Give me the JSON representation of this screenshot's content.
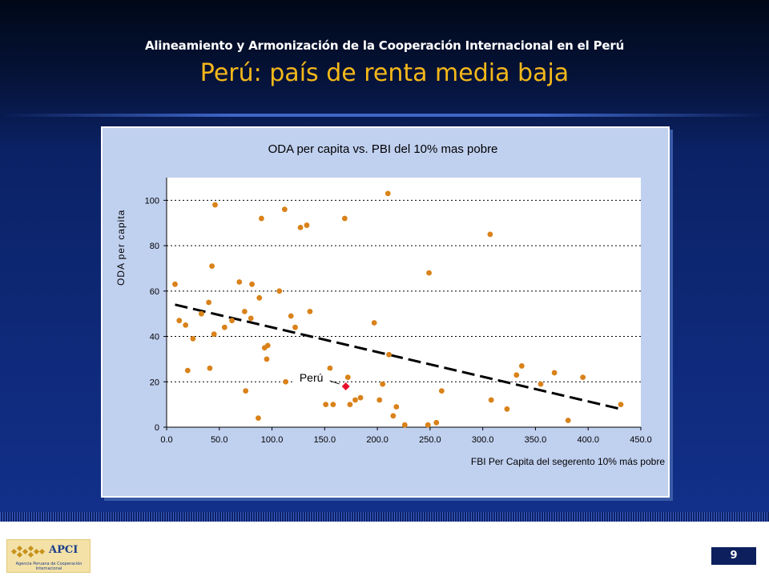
{
  "header": {
    "supertitle": "Alineamiento y Armonización de la Cooperación Internacional en el Perú",
    "title": "Perú: país de renta media baja"
  },
  "chart_data": {
    "type": "scatter",
    "title": "ODA per capita vs. PBI del 10% mas pobre",
    "xlabel": "FBI Per Capita del segerento 10% más pobre",
    "ylabel": "ODA per capita",
    "xlim": [
      0,
      450
    ],
    "ylim": [
      0,
      110
    ],
    "x_ticks": [
      "0.0",
      "50.0",
      "100.0",
      "150.0",
      "200.0",
      "250.0",
      "300.0",
      "350.0",
      "400.0",
      "450.0"
    ],
    "y_ticks": [
      "0",
      "20",
      "40",
      "60",
      "80",
      "100"
    ],
    "y_gridlines": [
      20,
      40,
      60,
      80,
      100
    ],
    "grid": "dotted horizontal",
    "colors": {
      "points": "#d9821a",
      "highlight": "#e8102a",
      "trend": "#000000",
      "plot_bg": "#ffffff",
      "frame_bg": "#c0d0ef"
    },
    "points": [
      {
        "x": 8,
        "y": 63
      },
      {
        "x": 12,
        "y": 47
      },
      {
        "x": 18,
        "y": 45
      },
      {
        "x": 20,
        "y": 25
      },
      {
        "x": 25,
        "y": 39
      },
      {
        "x": 33,
        "y": 50
      },
      {
        "x": 40,
        "y": 55
      },
      {
        "x": 41,
        "y": 26
      },
      {
        "x": 43,
        "y": 71
      },
      {
        "x": 45,
        "y": 41
      },
      {
        "x": 46,
        "y": 98
      },
      {
        "x": 55,
        "y": 44
      },
      {
        "x": 62,
        "y": 47
      },
      {
        "x": 69,
        "y": 64
      },
      {
        "x": 74,
        "y": 51
      },
      {
        "x": 75,
        "y": 16
      },
      {
        "x": 80,
        "y": 48
      },
      {
        "x": 81,
        "y": 63
      },
      {
        "x": 87,
        "y": 4
      },
      {
        "x": 88,
        "y": 57
      },
      {
        "x": 90,
        "y": 92
      },
      {
        "x": 93,
        "y": 35
      },
      {
        "x": 95,
        "y": 30
      },
      {
        "x": 96,
        "y": 36
      },
      {
        "x": 107,
        "y": 60
      },
      {
        "x": 112,
        "y": 96
      },
      {
        "x": 113,
        "y": 20
      },
      {
        "x": 118,
        "y": 49
      },
      {
        "x": 122,
        "y": 44
      },
      {
        "x": 127,
        "y": 88
      },
      {
        "x": 133,
        "y": 89
      },
      {
        "x": 136,
        "y": 51
      },
      {
        "x": 151,
        "y": 10
      },
      {
        "x": 155,
        "y": 26
      },
      {
        "x": 158,
        "y": 10
      },
      {
        "x": 169,
        "y": 92
      },
      {
        "x": 172,
        "y": 22
      },
      {
        "x": 174,
        "y": 10
      },
      {
        "x": 179,
        "y": 12
      },
      {
        "x": 184,
        "y": 13
      },
      {
        "x": 197,
        "y": 46
      },
      {
        "x": 202,
        "y": 12
      },
      {
        "x": 205,
        "y": 19
      },
      {
        "x": 210,
        "y": 103
      },
      {
        "x": 211,
        "y": 32
      },
      {
        "x": 215,
        "y": 5
      },
      {
        "x": 218,
        "y": 9
      },
      {
        "x": 226,
        "y": 1
      },
      {
        "x": 248,
        "y": 1
      },
      {
        "x": 249,
        "y": 68
      },
      {
        "x": 256,
        "y": 2
      },
      {
        "x": 261,
        "y": 16
      },
      {
        "x": 307,
        "y": 85
      },
      {
        "x": 308,
        "y": 12
      },
      {
        "x": 323,
        "y": 8
      },
      {
        "x": 332,
        "y": 23
      },
      {
        "x": 337,
        "y": 27
      },
      {
        "x": 355,
        "y": 19
      },
      {
        "x": 368,
        "y": 24
      },
      {
        "x": 381,
        "y": 3
      },
      {
        "x": 395,
        "y": 22
      },
      {
        "x": 431,
        "y": 10
      }
    ],
    "highlight": {
      "label": "Perú",
      "x": 170,
      "y": 18
    },
    "trendline": {
      "style": "dashed",
      "x": [
        8,
        431
      ],
      "y": [
        54,
        8
      ]
    }
  },
  "footer": {
    "logo_text": "APCI",
    "logo_subtext": "Agencia Peruana de Cooperación Internacional",
    "page_number": "9"
  }
}
